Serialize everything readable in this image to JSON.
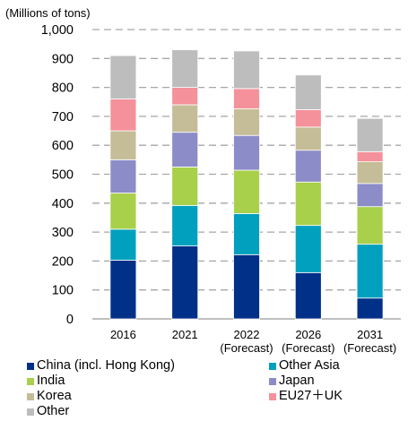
{
  "chart_data": {
    "type": "bar",
    "stacked": true,
    "y_unit_label": "(Millions of tons)",
    "ylim": [
      0,
      1000
    ],
    "yticks": [
      "0",
      "100",
      "200",
      "300",
      "400",
      "500",
      "600",
      "700",
      "800",
      "900",
      "1,000"
    ],
    "ytick_values": [
      0,
      100,
      200,
      300,
      400,
      500,
      600,
      700,
      800,
      900,
      1000
    ],
    "grid": true,
    "grid_style": "dashed",
    "legend_position": "bottom",
    "categories": [
      {
        "label": "2016",
        "sublabel": ""
      },
      {
        "label": "2021",
        "sublabel": ""
      },
      {
        "label": "2022",
        "sublabel": "(Forecast)"
      },
      {
        "label": "2026",
        "sublabel": "(Forecast)"
      },
      {
        "label": "2031",
        "sublabel": "(Forecast)"
      }
    ],
    "series": [
      {
        "name": "China (incl. Hong Kong)",
        "color": "#003087",
        "values": [
          203,
          252,
          222,
          160,
          72
        ]
      },
      {
        "name": "Other Asia",
        "color": "#00A0BE",
        "values": [
          107,
          140,
          142,
          163,
          186
        ]
      },
      {
        "name": "India",
        "color": "#A8D04A",
        "values": [
          125,
          133,
          150,
          150,
          130
        ]
      },
      {
        "name": "Japan",
        "color": "#8C8CC8",
        "values": [
          115,
          120,
          120,
          110,
          80
        ]
      },
      {
        "name": "Korea",
        "color": "#C4BD97",
        "values": [
          100,
          95,
          92,
          80,
          75
        ]
      },
      {
        "name": "EU27＋UK",
        "color": "#F4919A",
        "values": [
          110,
          60,
          70,
          60,
          35
        ]
      },
      {
        "name": "Other",
        "color": "#BDBDBD",
        "values": [
          150,
          130,
          130,
          120,
          115
        ]
      }
    ]
  }
}
